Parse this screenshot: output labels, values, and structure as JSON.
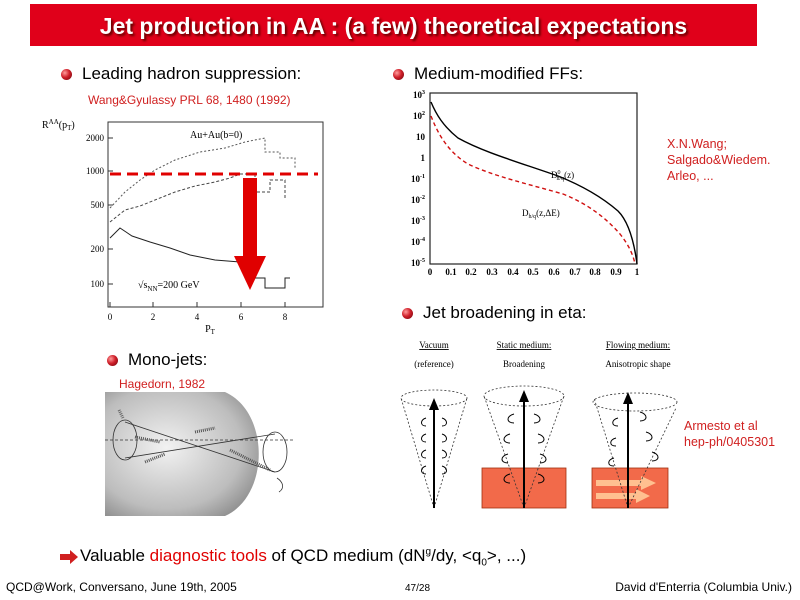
{
  "title": "Jet production in AA : (a few) theoretical expectations",
  "sections": {
    "leading": {
      "heading": "Leading hadron suppression:",
      "reference": "Wang&Gyulassy PRL 68, 1480 (1992)",
      "plot": {
        "ylabel": "R",
        "ylabel_sup": "AA",
        "ylabel_arg": "(p",
        "ylabel_arg_sub": "T",
        "ylabel_close": ")",
        "legend": "Au+Au(b=0)",
        "energy_label": "√s",
        "energy_sub": "NN",
        "energy_value": "=200 GeV",
        "xlabel": "P",
        "xlabel_sub": "T",
        "y_ticks": [
          "2000",
          "1000",
          "500",
          "200",
          "100"
        ],
        "x_ticks": [
          "0",
          "2",
          "4",
          "6",
          "8"
        ]
      }
    },
    "ffs": {
      "heading": "Medium-modified FFs:",
      "reference_lines": [
        "X.N.Wang;",
        "Salgado&Wiedem.",
        "Arleo, ..."
      ],
      "plot": {
        "y_mantissa": [
          "10",
          "10",
          "10",
          "1",
          "10",
          "10",
          "10",
          "10",
          "10"
        ],
        "y_exponents": [
          "3",
          "2",
          "",
          "",
          "-1",
          "-2",
          "-3",
          "-4",
          "-5"
        ],
        "x_ticks": [
          "0",
          "0.1",
          "0.2",
          "0.3",
          "0.4",
          "0.5",
          "0.6",
          "0.7",
          "0.8",
          "0.9",
          "1"
        ],
        "label_vacuum": "D",
        "label_vacuum_sup": "0",
        "label_vacuum_sub": "h/q",
        "label_vacuum_arg": "(z)",
        "label_medium": "D",
        "label_medium_sub": "h/q",
        "label_medium_arg": "(z,ΔE)",
        "colors": {
          "vacuum": "#000000",
          "medium": "#d01010"
        }
      }
    },
    "broadening": {
      "heading": "Jet broadening in eta:",
      "reference_lines": [
        "Armesto et al",
        "hep-ph/0405301"
      ],
      "panels": [
        {
          "title": "Vacuum",
          "subtitle": "(reference)"
        },
        {
          "title": "Static medium:",
          "subtitle": "Broadening"
        },
        {
          "title": "Flowing medium:",
          "subtitle": "Anisotropic shape"
        }
      ]
    },
    "monojets": {
      "heading": "Mono-jets:",
      "reference": "Hagedorn, 1982"
    }
  },
  "bottom_line": {
    "prefix": "Valuable ",
    "highlight": "diagnostic tools",
    "middle": " of QCD medium (dN",
    "sup_g": "g",
    "after_sup": "/dy, <q",
    "sub_0": "0",
    "suffix": ">, ...)"
  },
  "footer": {
    "left": "QCD@Work, Conversano, June 19th, 2005",
    "center": "47/28",
    "right": "David d'Enterria (Columbia Univ.)"
  }
}
